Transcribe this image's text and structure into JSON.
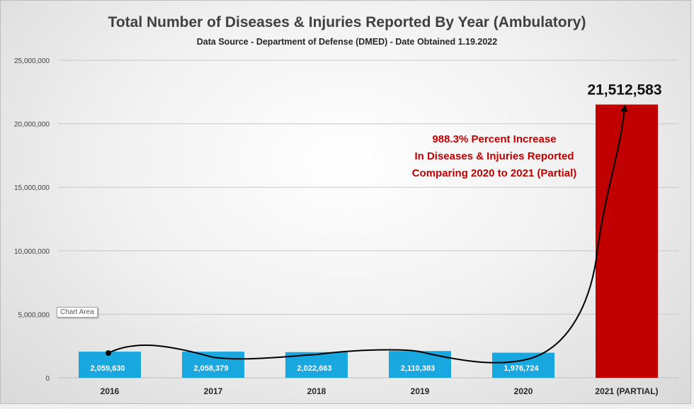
{
  "chart_data": {
    "type": "bar",
    "title": "Total Number of Diseases & Injuries Reported By Year (Ambulatory)",
    "subtitle": "Data Source - Department of Defense (DMED) - Date Obtained 1.19.2022",
    "categories": [
      "2016",
      "2017",
      "2018",
      "2019",
      "2020",
      "2021 (PARTIAL)"
    ],
    "values": [
      2059630,
      2058379,
      2022663,
      2110383,
      1976724,
      21512583
    ],
    "value_labels": [
      "2,059,630",
      "2,058,379",
      "2,022,663",
      "2,110,383",
      "1,976,724",
      "21,512,583"
    ],
    "bar_colors": [
      "#19a7e0",
      "#19a7e0",
      "#19a7e0",
      "#19a7e0",
      "#19a7e0",
      "#c00000"
    ],
    "yticks": [
      0,
      5000000,
      10000000,
      15000000,
      20000000,
      25000000
    ],
    "ytick_labels": [
      "0",
      "5,000,000",
      "10,000,000",
      "15,000,000",
      "20,000,000",
      "25,000,000"
    ],
    "ylim": [
      0,
      25000000
    ],
    "xlabel": "",
    "ylabel": "",
    "grid": "horizontal",
    "annotation": [
      "988.3% Percent Increase",
      "In Diseases & Injuries Reported",
      "Comparing 2020 to 2021 (Partial)"
    ],
    "annotation_color": "#c00000"
  },
  "tooltip": "Chart Area"
}
